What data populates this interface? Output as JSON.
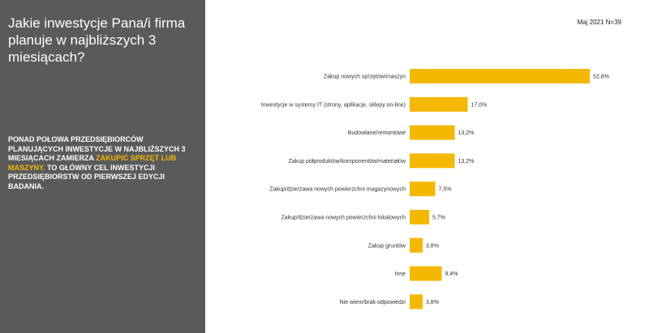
{
  "slide": {
    "title": "Jakie inwestycje Pana/i firma planuje w najbliższych 3 miesiącach?",
    "summary_part1": "PONAD POŁOWA PRZEDSIĘBIORCÓW PLANUJĄCYCH INWESTYCJE W NAJBLIŻSZYCH 3 MIESIĄCACH ZAMIERZA ",
    "summary_highlight": "ZAKUPIĆ SPRZĘT LUB MASZYNY.",
    "summary_part2": " TO GŁÓWNY CEL INWESTYCJI PRZEDSIĘBIORSTW OD PIERWSZEJ EDYCJI BADANIA.",
    "date_label": "Maj 2021 N=39"
  },
  "colors": {
    "bar": "#f5b800",
    "panel": "#5a5a5a",
    "highlight": "#f5b800"
  },
  "chart_data": {
    "type": "bar",
    "orientation": "horizontal",
    "categories": [
      "Zakup nowych sprzętów/maszyn",
      "Inwestycje w systemy IT (strony, aplikacje, sklepy on-line)",
      "Budowlane/remontowe",
      "Zakup półproduktów/komponentów/materiałów",
      "Zakup/dzierżawa nowych powierzchni magazynowych",
      "Zakup/dzierżawa nowych powierzchni lokalowych",
      "Zakup gruntów",
      "Inne",
      "Nie wiem/brak odpowiedzi"
    ],
    "values": [
      52.8,
      17.0,
      13.2,
      13.2,
      7.5,
      5.7,
      3.8,
      9.4,
      3.8
    ],
    "value_labels": [
      "52,8%",
      "17,0%",
      "13,2%",
      "13,2%",
      "7,5%",
      "5,7%",
      "3,8%",
      "9,4%",
      "3,8%"
    ],
    "xlim": [
      0,
      52.8
    ],
    "grid": false,
    "legend": "none"
  }
}
